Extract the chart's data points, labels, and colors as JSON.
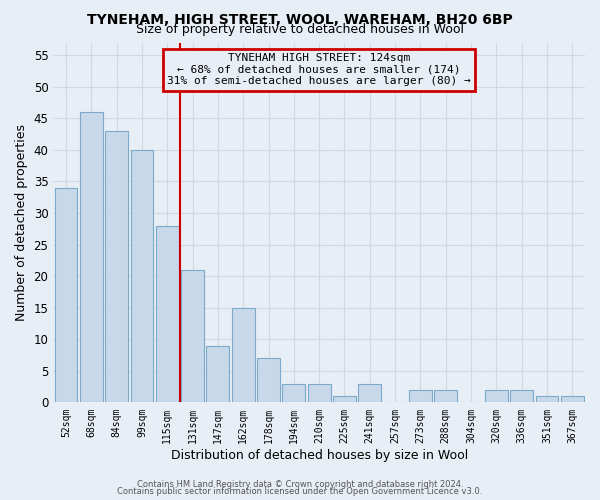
{
  "title_line1": "TYNEHAM, HIGH STREET, WOOL, WAREHAM, BH20 6BP",
  "title_line2": "Size of property relative to detached houses in Wool",
  "xlabel": "Distribution of detached houses by size in Wool",
  "ylabel": "Number of detached properties",
  "categories": [
    "52sqm",
    "68sqm",
    "84sqm",
    "99sqm",
    "115sqm",
    "131sqm",
    "147sqm",
    "162sqm",
    "178sqm",
    "194sqm",
    "210sqm",
    "225sqm",
    "241sqm",
    "257sqm",
    "273sqm",
    "288sqm",
    "304sqm",
    "320sqm",
    "336sqm",
    "351sqm",
    "367sqm"
  ],
  "values": [
    34,
    46,
    43,
    40,
    28,
    21,
    9,
    15,
    7,
    3,
    3,
    1,
    3,
    0,
    2,
    2,
    0,
    2,
    2,
    1,
    1
  ],
  "bar_color": "#c8d8eb",
  "bar_edge_color": "#7aaac8",
  "ylim": [
    0,
    57
  ],
  "yticks": [
    0,
    5,
    10,
    15,
    20,
    25,
    30,
    35,
    40,
    45,
    50,
    55
  ],
  "vline_color": "#cc0000",
  "annotation_title": "TYNEHAM HIGH STREET: 124sqm",
  "annotation_line1": "← 68% of detached houses are smaller (174)",
  "annotation_line2": "31% of semi-detached houses are larger (80) →",
  "annotation_box_color": "#cc0000",
  "bg_color": "#e8eef5",
  "grid_color": "#d0d8e0",
  "footer_line1": "Contains HM Land Registry data © Crown copyright and database right 2024.",
  "footer_line2": "Contains public sector information licensed under the Open Government Licence v3.0."
}
